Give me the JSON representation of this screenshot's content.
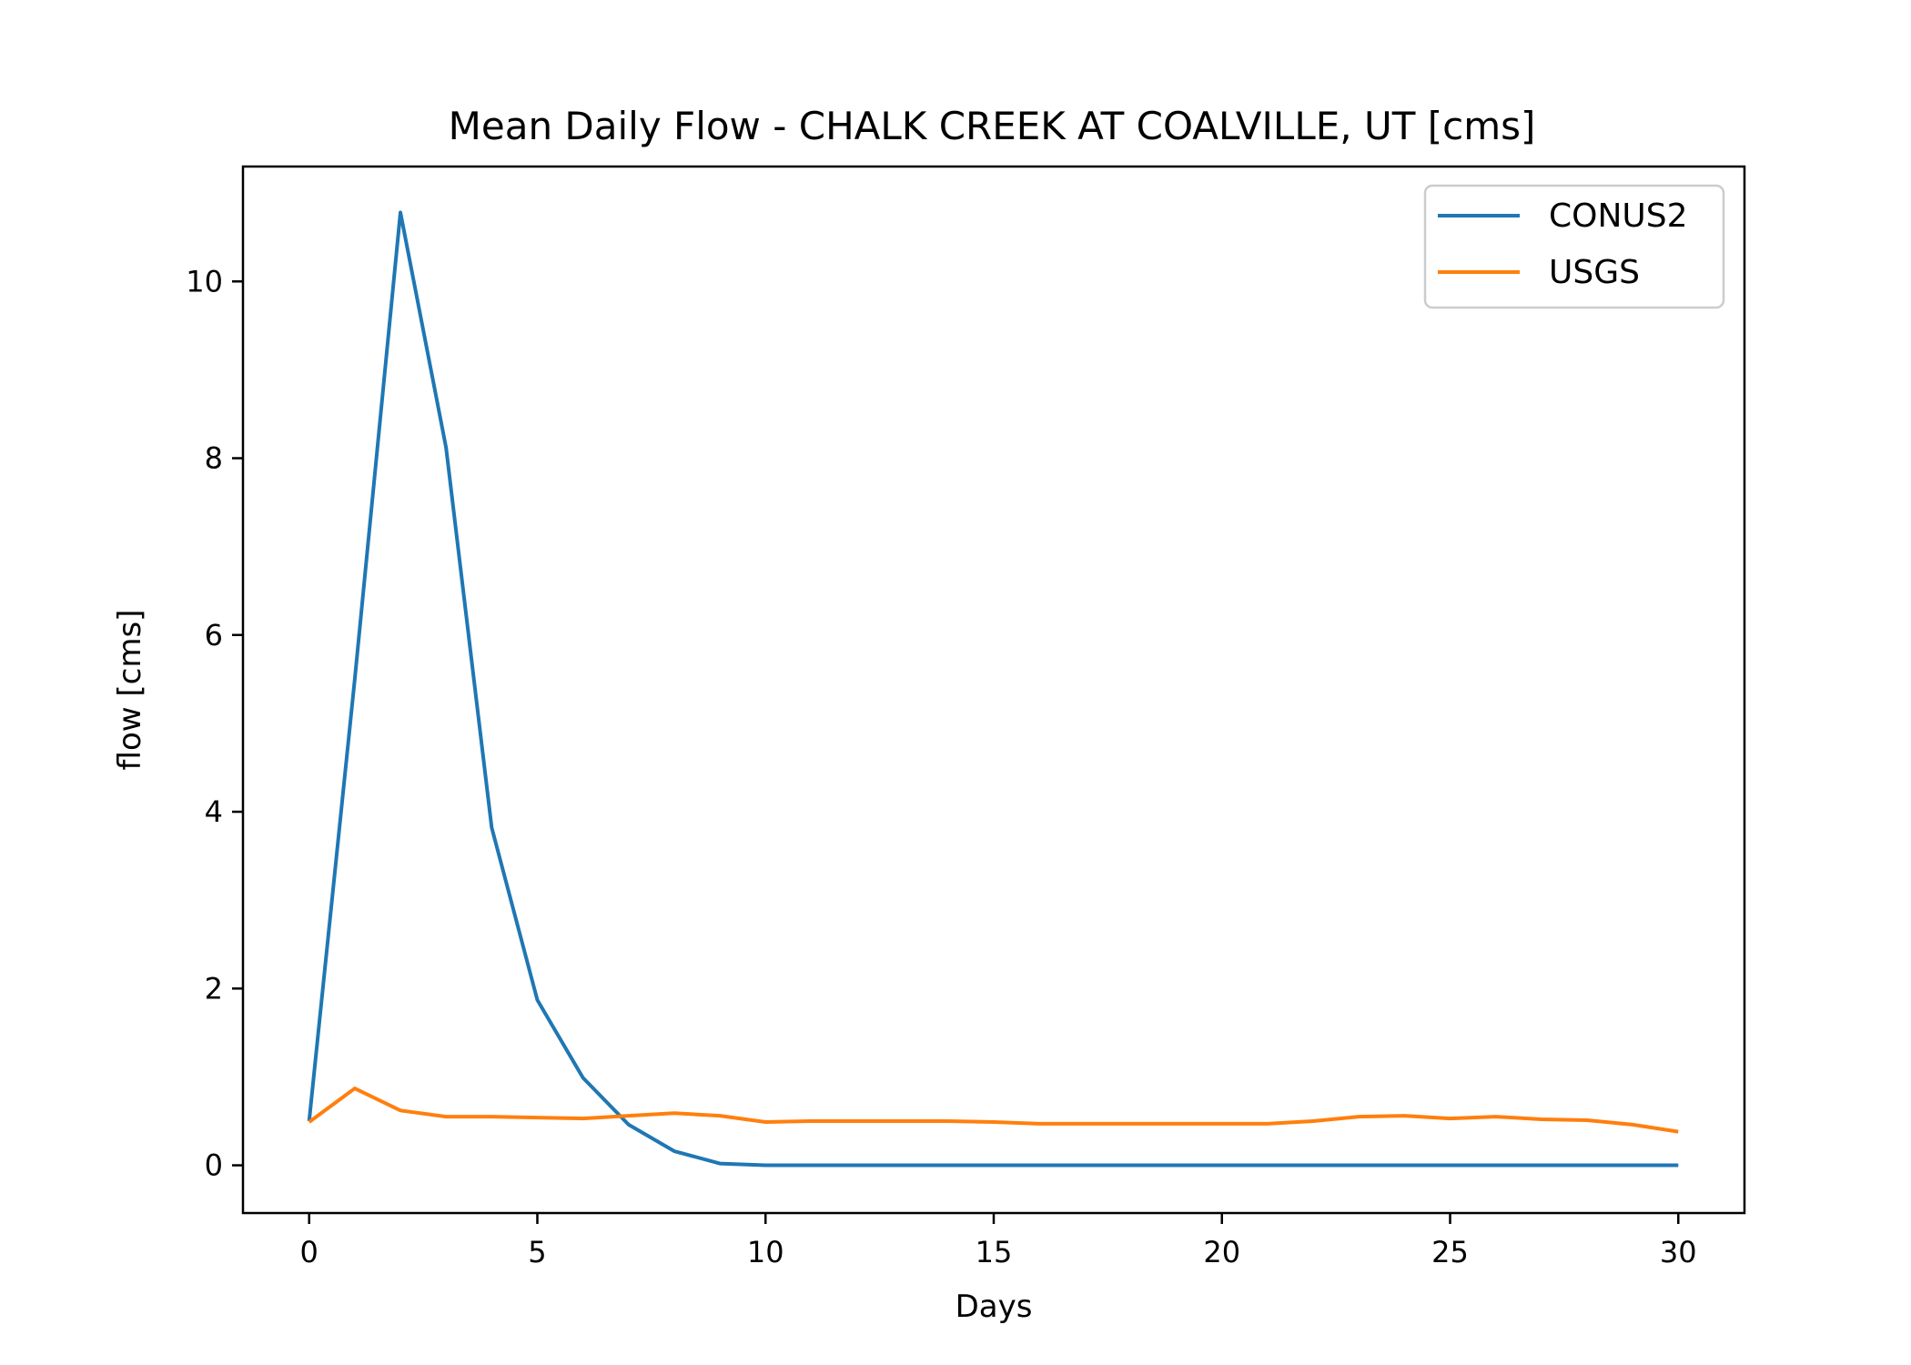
{
  "chart_data": {
    "type": "line",
    "title": "Mean Daily Flow - CHALK CREEK AT COALVILLE, UT [cms]",
    "xlabel": "Days",
    "ylabel": "flow [cms]",
    "xlim": [
      -1.45,
      31.45
    ],
    "ylim": [
      -0.54,
      11.3
    ],
    "xticks": [
      0,
      5,
      10,
      15,
      20,
      25,
      30
    ],
    "yticks": [
      0,
      2,
      4,
      6,
      8,
      10
    ],
    "grid": false,
    "legend": "top-right",
    "x": [
      0,
      1,
      2,
      3,
      4,
      5,
      6,
      7,
      8,
      9,
      10,
      11,
      12,
      13,
      14,
      15,
      16,
      17,
      18,
      19,
      20,
      21,
      22,
      23,
      24,
      25,
      26,
      27,
      28,
      29,
      30
    ],
    "series": [
      {
        "name": "CONUS2",
        "color": "#1f77b4",
        "values": [
          0.5,
          5.5,
          10.78,
          8.12,
          3.82,
          1.87,
          0.99,
          0.46,
          0.16,
          0.02,
          0.0,
          0.0,
          0.0,
          0.0,
          0.0,
          0.0,
          0.0,
          0.0,
          0.0,
          0.0,
          0.0,
          0.0,
          0.0,
          0.0,
          0.0,
          0.0,
          0.0,
          0.0,
          0.0,
          0.0,
          0.0
        ]
      },
      {
        "name": "USGS",
        "color": "#ff7f0e",
        "values": [
          0.49,
          0.87,
          0.62,
          0.55,
          0.55,
          0.54,
          0.53,
          0.56,
          0.59,
          0.56,
          0.49,
          0.5,
          0.5,
          0.5,
          0.5,
          0.49,
          0.47,
          0.47,
          0.47,
          0.47,
          0.47,
          0.47,
          0.5,
          0.55,
          0.56,
          0.53,
          0.55,
          0.52,
          0.51,
          0.46,
          0.38
        ]
      }
    ]
  }
}
